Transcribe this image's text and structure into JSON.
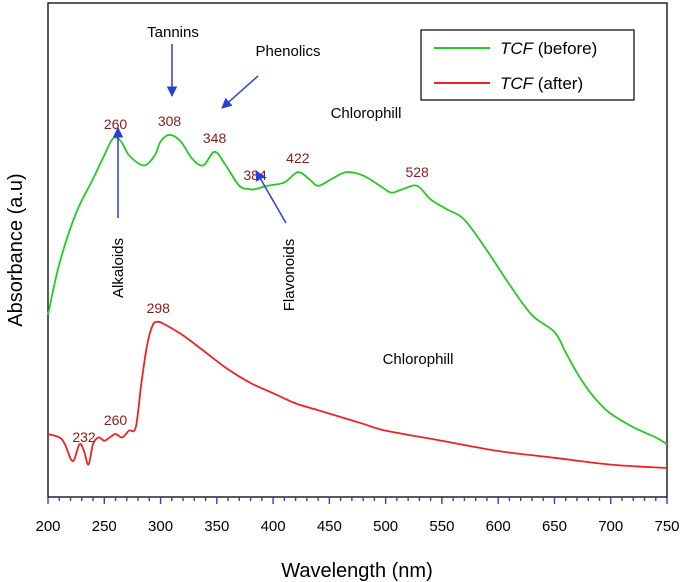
{
  "chart_data": {
    "type": "line",
    "xlabel": "Wavelength (nm)",
    "ylabel": "Absorbance (a.u)",
    "xlim": [
      200,
      750
    ],
    "ylim": [
      0,
      1
    ],
    "x_ticks": [
      "200",
      "250",
      "300",
      "350",
      "400",
      "450",
      "500",
      "550",
      "600",
      "650",
      "700",
      "750"
    ],
    "series": [
      {
        "name": "before",
        "legend_italic": "TCF",
        "legend_suffix": " (before)",
        "color": "#22cc22",
        "x": [
          200,
          210,
          225,
          240,
          250,
          258,
          265,
          272,
          285,
          295,
          300,
          308,
          318,
          328,
          338,
          348,
          358,
          370,
          380,
          384,
          395,
          410,
          422,
          432,
          440,
          452,
          465,
          480,
          495,
          505,
          515,
          528,
          540,
          555,
          570,
          590,
          610,
          630,
          650,
          660,
          670,
          680,
          690,
          700,
          720,
          740,
          750
        ],
        "y": [
          0.45,
          0.6,
          0.75,
          0.85,
          0.92,
          0.97,
          0.96,
          0.92,
          0.89,
          0.92,
          0.96,
          0.98,
          0.96,
          0.91,
          0.89,
          0.93,
          0.89,
          0.83,
          0.82,
          0.82,
          0.83,
          0.84,
          0.87,
          0.85,
          0.83,
          0.85,
          0.87,
          0.86,
          0.83,
          0.81,
          0.82,
          0.83,
          0.79,
          0.76,
          0.73,
          0.64,
          0.54,
          0.45,
          0.4,
          0.34,
          0.28,
          0.23,
          0.19,
          0.16,
          0.12,
          0.09,
          0.07
        ]
      },
      {
        "name": "after",
        "legend_italic": "TCF",
        "legend_suffix": " (after)",
        "color": "#ee2222",
        "x": [
          200,
          210,
          215,
          222,
          228,
          232,
          236,
          240,
          245,
          250,
          255,
          260,
          266,
          272,
          278,
          283,
          288,
          293,
          298,
          305,
          320,
          340,
          360,
          380,
          400,
          420,
          440,
          460,
          480,
          500,
          550,
          600,
          650,
          700,
          750
        ],
        "y": [
          0.1,
          0.09,
          0.07,
          0.02,
          0.07,
          0.05,
          0.01,
          0.07,
          0.09,
          0.08,
          0.09,
          0.1,
          0.09,
          0.11,
          0.12,
          0.25,
          0.36,
          0.42,
          0.43,
          0.42,
          0.39,
          0.34,
          0.29,
          0.25,
          0.22,
          0.19,
          0.17,
          0.15,
          0.13,
          0.11,
          0.08,
          0.05,
          0.03,
          0.01,
          0.0
        ]
      }
    ],
    "peak_labels": [
      {
        "text": "260",
        "series": "before",
        "x": 260,
        "y": 0.97
      },
      {
        "text": "308",
        "series": "before",
        "x": 308,
        "y": 0.98
      },
      {
        "text": "348",
        "series": "before",
        "x": 348,
        "y": 0.93
      },
      {
        "text": "384",
        "series": "before",
        "x": 384,
        "y": 0.82
      },
      {
        "text": "422",
        "series": "before",
        "x": 422,
        "y": 0.87
      },
      {
        "text": "528",
        "series": "before",
        "x": 528,
        "y": 0.83
      },
      {
        "text": "232",
        "series": "after",
        "x": 232,
        "y": 0.05
      },
      {
        "text": "260",
        "series": "after",
        "x": 260,
        "y": 0.1
      },
      {
        "text": "298",
        "series": "after",
        "x": 298,
        "y": 0.43
      }
    ],
    "peak_label_color": "#8b1a1a",
    "arrow_color": "#2a3fd6",
    "annotations": {
      "tannins": "Tannins",
      "phenolics": "Phenolics",
      "chlorophill_before": "Chlorophill",
      "flavonoids": "Flavonoids",
      "alkaloids": "Alkaloids",
      "chlorophill_after": "Chlorophill"
    },
    "legend_position": "top-right",
    "grid": false
  }
}
